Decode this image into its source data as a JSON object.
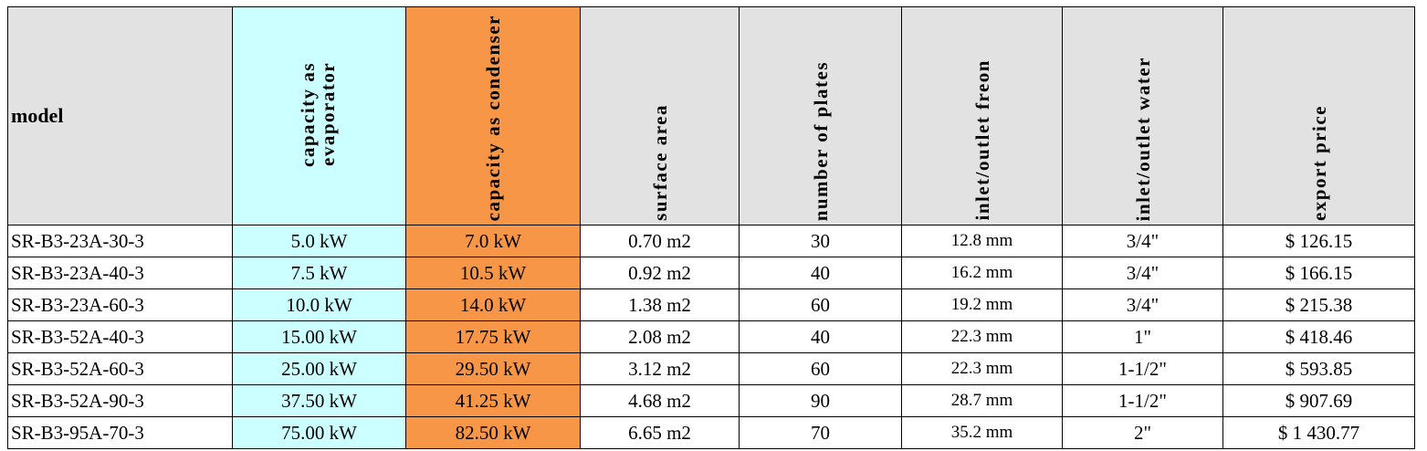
{
  "headers": {
    "model": "model",
    "capacity_evaporator": "capacity as evaporator",
    "capacity_condenser": "capacity as condenser",
    "surface_area": "surface area",
    "number_of_plates": "number of plates",
    "inlet_outlet_freon": "inlet/outlet freon",
    "inlet_outlet_water": "inlet/outlet water",
    "export_price": "export price"
  },
  "rows": [
    {
      "model": "SR-B3-23A-30-3",
      "evap": "5.0 kW",
      "cond": "7.0 kW",
      "area": "0.70 m2",
      "plates": "30",
      "freon": "12.8 mm",
      "water": "3/4\"",
      "price": "$ 126.15"
    },
    {
      "model": "SR-B3-23A-40-3",
      "evap": "7.5 kW",
      "cond": "10.5 kW",
      "area": "0.92 m2",
      "plates": "40",
      "freon": "16.2 mm",
      "water": "3/4\"",
      "price": "$ 166.15"
    },
    {
      "model": "SR-B3-23A-60-3",
      "evap": "10.0 kW",
      "cond": "14.0 kW",
      "area": "1.38 m2",
      "plates": "60",
      "freon": "19.2 mm",
      "water": "3/4\"",
      "price": "$ 215.38"
    },
    {
      "model": "SR-B3-52A-40-3",
      "evap": "15.00 kW",
      "cond": "17.75 kW",
      "area": "2.08 m2",
      "plates": "40",
      "freon": "22.3 mm",
      "water": "1\"",
      "price": "$ 418.46"
    },
    {
      "model": "SR-B3-52A-60-3",
      "evap": "25.00 kW",
      "cond": "29.50 kW",
      "area": "3.12 m2",
      "plates": "60",
      "freon": "22.3 mm",
      "water": "1-1/2\"",
      "price": "$ 593.85"
    },
    {
      "model": "SR-B3-52A-90-3",
      "evap": "37.50 kW",
      "cond": "41.25 kW",
      "area": "4.68 m2",
      "plates": "90",
      "freon": "28.7 mm",
      "water": "1-1/2\"",
      "price": "$ 907.69"
    },
    {
      "model": "SR-B3-95A-70-3",
      "evap": "75.00 kW",
      "cond": "82.50 kW",
      "area": "6.65 m2",
      "plates": "70",
      "freon": "35.2 mm",
      "water": "2\"",
      "price": "$ 1 430.77"
    }
  ],
  "colors": {
    "header_bg": "#e2e2e2",
    "evaporator_col": "#ccffff",
    "condenser_col": "#f79646"
  }
}
